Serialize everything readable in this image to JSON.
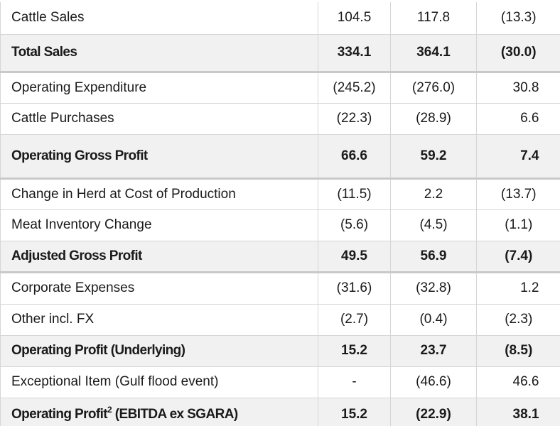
{
  "rows": [
    {
      "label": "Cattle Sales",
      "a": "104.5",
      "b": "117.8",
      "c": "(13.3)",
      "style": "normal",
      "h": 45,
      "heavy": false
    },
    {
      "label": "Total Sales",
      "a": "334.1",
      "b": "364.1",
      "c": "(30.0)",
      "style": "bold",
      "h": 53,
      "heavy": true
    },
    {
      "label": "Operating Expenditure",
      "a": "(245.2)",
      "b": "(276.0)",
      "c": "30.8",
      "style": "normal",
      "h": 44,
      "heavy": false
    },
    {
      "label": "Cattle Purchases",
      "a": "(22.3)",
      "b": "(28.9)",
      "c": "6.6",
      "style": "normal",
      "h": 44,
      "heavy": false
    },
    {
      "label": "Operating Gross Profit",
      "a": "66.6",
      "b": "59.2",
      "c": "7.4",
      "style": "bold",
      "h": 62,
      "heavy": true
    },
    {
      "label": "Change in Herd at Cost of Production",
      "a": "(11.5)",
      "b": "2.2",
      "c": "(13.7)",
      "style": "normal",
      "h": 44,
      "heavy": false
    },
    {
      "label": "Meat Inventory Change",
      "a": "(5.6)",
      "b": "(4.5)",
      "c": "(1.1)",
      "style": "normal",
      "h": 44,
      "heavy": false
    },
    {
      "label": "Adjusted Gross Profit",
      "a": "49.5",
      "b": "56.9",
      "c": "(7.4)",
      "style": "bold",
      "h": 44,
      "heavy": true
    },
    {
      "label": "Corporate Expenses",
      "a": "(31.6)",
      "b": "(32.8)",
      "c": "1.2",
      "style": "normal",
      "h": 45,
      "heavy": false
    },
    {
      "label": "Other incl. FX",
      "a": "(2.7)",
      "b": "(0.4)",
      "c": "(2.3)",
      "style": "normal",
      "h": 44,
      "heavy": false
    },
    {
      "label": "Operating Profit (Underlying)",
      "a": "15.2",
      "b": "23.7",
      "c": "(8.5)",
      "style": "bold",
      "h": 44,
      "heavy": false
    },
    {
      "label": "Exceptional Item (Gulf flood event)",
      "a": "-",
      "b": "(46.6)",
      "c": "46.6",
      "style": "normal",
      "h": 44,
      "heavy": false
    },
    {
      "label": "Operating Profit",
      "sup": "2",
      "label_suffix": " (EBITDA ex SGARA)",
      "a": "15.2",
      "b": "(22.9)",
      "c": "38.1",
      "style": "bold",
      "h": 48,
      "heavy": false
    }
  ]
}
